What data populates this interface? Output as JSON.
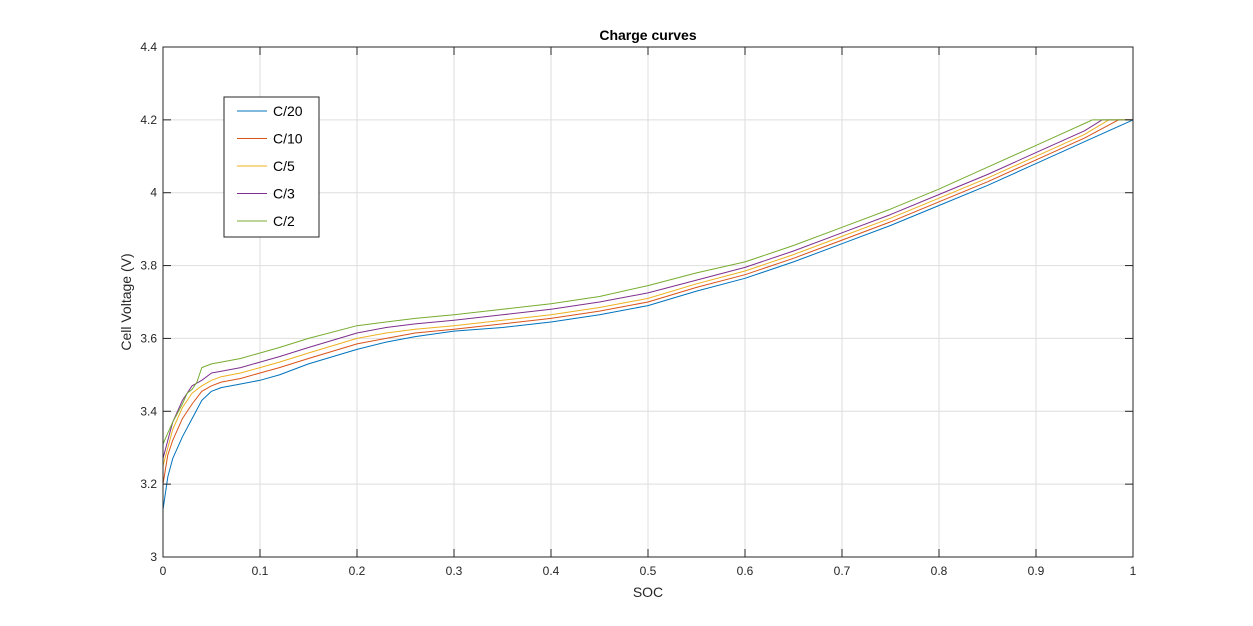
{
  "chart_data": {
    "type": "line",
    "title": "Charge curves",
    "xlabel": "SOC",
    "ylabel": "Cell Voltage (V)",
    "xlim": [
      0,
      1
    ],
    "ylim": [
      3,
      4.4
    ],
    "xticks": [
      0,
      0.1,
      0.2,
      0.3,
      0.4,
      0.5,
      0.6,
      0.7,
      0.8,
      0.9,
      1
    ],
    "xtick_labels": [
      "0",
      "0.1",
      "0.2",
      "0.3",
      "0.4",
      "0.5",
      "0.6",
      "0.7",
      "0.8",
      "0.9",
      "1"
    ],
    "yticks": [
      3,
      3.2,
      3.4,
      3.6,
      3.8,
      4,
      4.2,
      4.4
    ],
    "ytick_labels": [
      "3",
      "3.2",
      "3.4",
      "3.6",
      "3.8",
      "4",
      "4.2",
      "4.4"
    ],
    "grid": true,
    "legend_position": "top-left",
    "series": [
      {
        "name": "C/20",
        "color": "#0072BD",
        "x": [
          0,
          0.005,
          0.01,
          0.02,
          0.03,
          0.04,
          0.05,
          0.06,
          0.08,
          0.1,
          0.12,
          0.15,
          0.2,
          0.23,
          0.26,
          0.3,
          0.35,
          0.4,
          0.45,
          0.5,
          0.55,
          0.6,
          0.65,
          0.7,
          0.75,
          0.8,
          0.85,
          0.9,
          0.95,
          1
        ],
        "y": [
          3.13,
          3.22,
          3.27,
          3.33,
          3.38,
          3.43,
          3.455,
          3.465,
          3.475,
          3.485,
          3.5,
          3.53,
          3.57,
          3.59,
          3.605,
          3.62,
          3.63,
          3.645,
          3.665,
          3.69,
          3.73,
          3.765,
          3.81,
          3.86,
          3.91,
          3.965,
          4.02,
          4.08,
          4.14,
          4.2
        ]
      },
      {
        "name": "C/10",
        "color": "#D95319",
        "x": [
          0,
          0.005,
          0.01,
          0.02,
          0.03,
          0.04,
          0.05,
          0.06,
          0.08,
          0.1,
          0.12,
          0.15,
          0.2,
          0.23,
          0.26,
          0.3,
          0.35,
          0.4,
          0.45,
          0.5,
          0.55,
          0.6,
          0.65,
          0.7,
          0.75,
          0.8,
          0.85,
          0.9,
          0.95,
          0.985,
          1
        ],
        "y": [
          3.2,
          3.28,
          3.32,
          3.38,
          3.42,
          3.455,
          3.47,
          3.48,
          3.49,
          3.505,
          3.52,
          3.545,
          3.585,
          3.6,
          3.615,
          3.625,
          3.64,
          3.655,
          3.675,
          3.7,
          3.74,
          3.775,
          3.82,
          3.87,
          3.92,
          3.975,
          4.03,
          4.09,
          4.15,
          4.2,
          4.2
        ]
      },
      {
        "name": "C/5",
        "color": "#EDB120",
        "x": [
          0,
          0.005,
          0.01,
          0.02,
          0.03,
          0.04,
          0.05,
          0.06,
          0.08,
          0.1,
          0.12,
          0.15,
          0.2,
          0.23,
          0.26,
          0.3,
          0.35,
          0.4,
          0.45,
          0.5,
          0.55,
          0.6,
          0.65,
          0.7,
          0.75,
          0.8,
          0.85,
          0.9,
          0.95,
          0.975,
          1
        ],
        "y": [
          3.25,
          3.3,
          3.35,
          3.41,
          3.45,
          3.47,
          3.485,
          3.495,
          3.505,
          3.52,
          3.535,
          3.56,
          3.6,
          3.615,
          3.625,
          3.635,
          3.65,
          3.665,
          3.685,
          3.71,
          3.75,
          3.785,
          3.83,
          3.88,
          3.93,
          3.985,
          4.04,
          4.1,
          4.16,
          4.2,
          4.2
        ]
      },
      {
        "name": "C/3",
        "color": "#7E2F8E",
        "x": [
          0,
          0.005,
          0.01,
          0.02,
          0.03,
          0.04,
          0.05,
          0.06,
          0.08,
          0.1,
          0.12,
          0.15,
          0.2,
          0.23,
          0.26,
          0.3,
          0.35,
          0.4,
          0.45,
          0.5,
          0.55,
          0.6,
          0.65,
          0.7,
          0.75,
          0.8,
          0.85,
          0.9,
          0.95,
          0.968,
          1
        ],
        "y": [
          3.27,
          3.32,
          3.37,
          3.43,
          3.47,
          3.485,
          3.505,
          3.51,
          3.52,
          3.535,
          3.55,
          3.575,
          3.615,
          3.63,
          3.64,
          3.65,
          3.665,
          3.68,
          3.7,
          3.725,
          3.76,
          3.795,
          3.84,
          3.89,
          3.94,
          3.995,
          4.05,
          4.11,
          4.17,
          4.2,
          4.2
        ]
      },
      {
        "name": "C/2",
        "color": "#77AC30",
        "x": [
          0,
          0.005,
          0.01,
          0.02,
          0.025,
          0.03,
          0.035,
          0.04,
          0.05,
          0.06,
          0.08,
          0.1,
          0.12,
          0.15,
          0.2,
          0.23,
          0.26,
          0.3,
          0.35,
          0.4,
          0.45,
          0.5,
          0.55,
          0.6,
          0.65,
          0.7,
          0.75,
          0.8,
          0.85,
          0.9,
          0.95,
          0.958,
          1
        ],
        "y": [
          3.31,
          3.34,
          3.37,
          3.42,
          3.45,
          3.46,
          3.48,
          3.52,
          3.53,
          3.535,
          3.545,
          3.56,
          3.575,
          3.6,
          3.635,
          3.645,
          3.655,
          3.665,
          3.68,
          3.695,
          3.715,
          3.745,
          3.78,
          3.81,
          3.855,
          3.905,
          3.955,
          4.01,
          4.07,
          4.13,
          4.19,
          4.2,
          4.2
        ]
      }
    ]
  }
}
